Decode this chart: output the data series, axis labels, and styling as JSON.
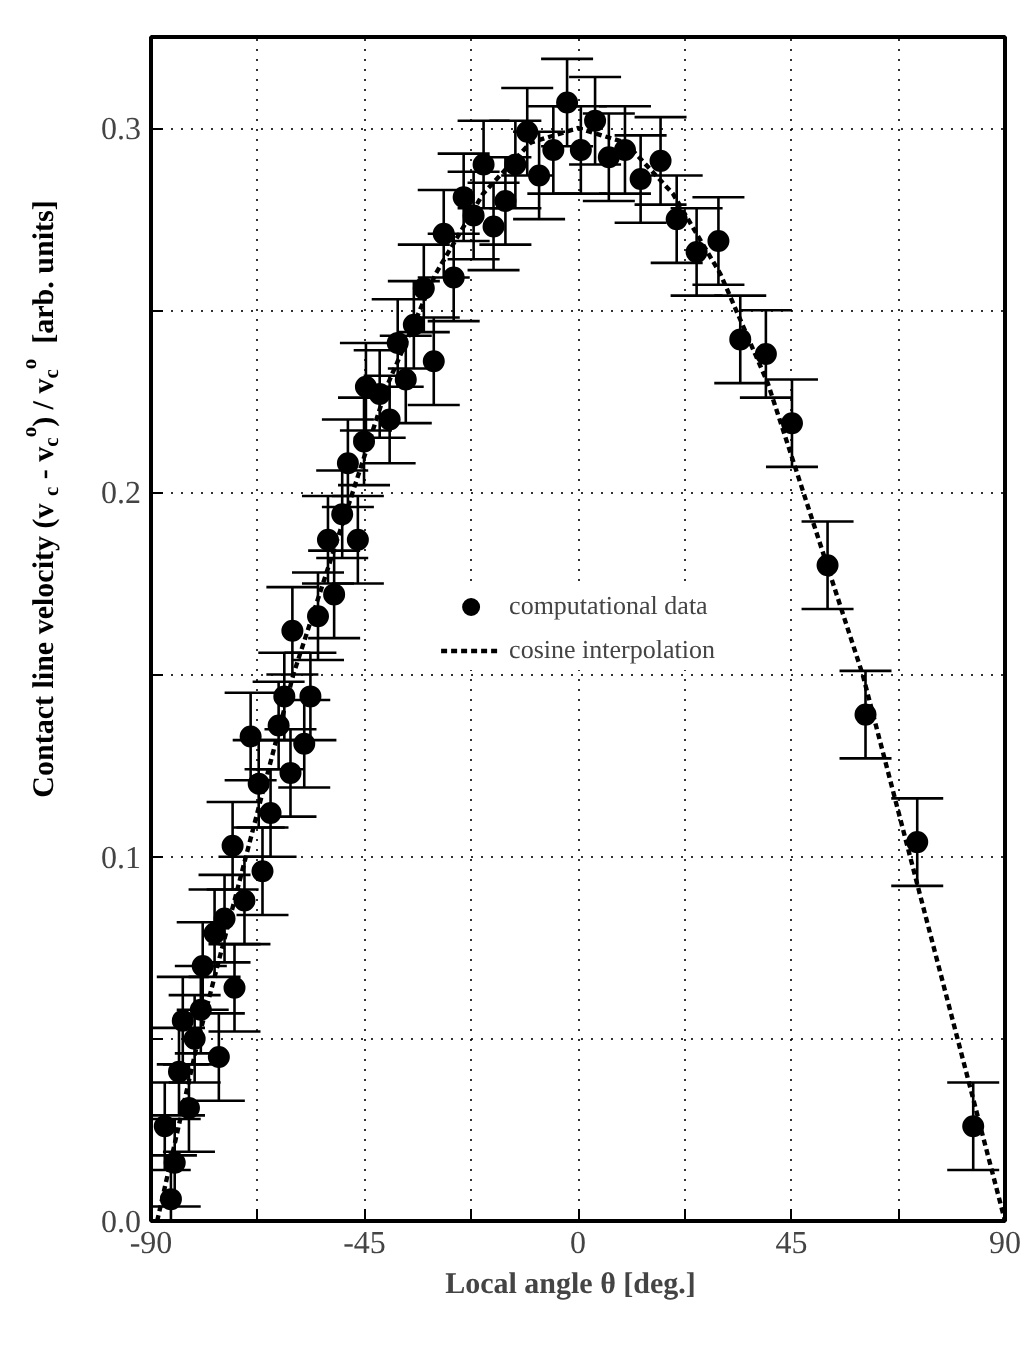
{
  "chart_data": {
    "type": "scatter",
    "xlabel": "Local angle  θ  [deg.]",
    "ylabel": "Contact line velocity  (v$_{c}$ - v$_{c}$$^{o}$) / v$_{c}$$^{o}$  [arb. units]",
    "xlim": [
      -90,
      90
    ],
    "ylim": [
      0,
      0.325
    ],
    "xticks": [
      -90,
      {
        "value": -67.5,
        "label": null
      },
      -45,
      {
        "value": -22.5,
        "label": null
      },
      0,
      {
        "value": 22.5,
        "label": null
      },
      45,
      {
        "value": 67.5,
        "label": null
      },
      90
    ],
    "yticks": [
      {
        "value": 0,
        "label": "0.0"
      },
      {
        "value": 0.05,
        "label": null
      },
      0.1,
      {
        "value": 0.15,
        "label": null
      },
      0.2,
      {
        "value": 0.25,
        "label": null
      },
      0.3
    ],
    "grid": true,
    "legend": "center",
    "series": [
      {
        "name": "computational data",
        "type": "scatter",
        "color": "#000000",
        "marker": "circle",
        "x": [
          -85.8,
          -85.0,
          -87.1,
          -82.0,
          -75.7,
          -84.1,
          -80.8,
          -83.3,
          -79.5,
          -72.4,
          -79.1,
          -76.6,
          -74.5,
          -70.3,
          -66.5,
          -72.8,
          -64.8,
          -60.6,
          -67.3,
          -57.7,
          -69.0,
          -63.1,
          -56.4,
          -61.9,
          -60.2,
          -54.8,
          -51.4,
          -46.4,
          -52.7,
          -49.7,
          -48.5,
          -45.1,
          -39.7,
          -41.8,
          -44.7,
          -36.3,
          -38.0,
          -30.4,
          -34.6,
          -32.5,
          -26.2,
          -28.3,
          -24.1,
          -22.0,
          -17.8,
          -15.3,
          -19.9,
          -13.2,
          -10.7,
          -8.2,
          -5.2,
          -2.3,
          0.6,
          3.6,
          6.5,
          9.9,
          13.2,
          17.4,
          20.8,
          25.0,
          29.6,
          34.2,
          39.6,
          45.1,
          52.6,
          60.6,
          71.5,
          83.3
        ],
        "values": [
          0.006,
          0.016,
          0.026,
          0.031,
          0.045,
          0.041,
          0.05,
          0.055,
          0.058,
          0.064,
          0.07,
          0.079,
          0.083,
          0.088,
          0.096,
          0.103,
          0.112,
          0.123,
          0.12,
          0.131,
          0.133,
          0.136,
          0.144,
          0.144,
          0.162,
          0.166,
          0.172,
          0.187,
          0.187,
          0.194,
          0.208,
          0.214,
          0.22,
          0.227,
          0.229,
          0.231,
          0.241,
          0.236,
          0.246,
          0.256,
          0.259,
          0.271,
          0.281,
          0.276,
          0.273,
          0.28,
          0.29,
          0.29,
          0.299,
          0.287,
          0.294,
          0.307,
          0.294,
          0.302,
          0.292,
          0.294,
          0.286,
          0.291,
          0.275,
          0.266,
          0.269,
          0.242,
          0.238,
          0.219,
          0.18,
          0.139,
          0.104,
          0.026
        ],
        "errors": [
          0.012,
          0.012,
          0.012,
          0.012,
          0.012,
          0.012,
          0.012,
          0.012,
          0.012,
          0.012,
          0.012,
          0.012,
          0.012,
          0.012,
          0.012,
          0.012,
          0.012,
          0.012,
          0.012,
          0.012,
          0.012,
          0.012,
          0.012,
          0.012,
          0.012,
          0.012,
          0.012,
          0.012,
          0.012,
          0.012,
          0.012,
          0.012,
          0.012,
          0.012,
          0.012,
          0.012,
          0.012,
          0.012,
          0.012,
          0.012,
          0.012,
          0.012,
          0.012,
          0.012,
          0.012,
          0.012,
          0.012,
          0.012,
          0.012,
          0.012,
          0.012,
          0.012,
          0.012,
          0.012,
          0.012,
          0.012,
          0.012,
          0.012,
          0.012,
          0.012,
          0.012,
          0.012,
          0.012,
          0.012,
          0.012,
          0.012,
          0.012,
          0.012
        ]
      },
      {
        "name": "cosine interpolation",
        "type": "line",
        "color": "#000000",
        "marker": "none",
        "line_style": "dashed",
        "x": [
          -88.7,
          -80,
          -70,
          -60,
          -50,
          -40,
          -30,
          -20,
          -10,
          0,
          10,
          20,
          30,
          40,
          50,
          60,
          70,
          80,
          90
        ],
        "values": [
          0.0,
          0.05,
          0.1,
          0.15,
          0.19,
          0.23,
          0.26,
          0.282,
          0.296,
          0.3,
          0.296,
          0.282,
          0.26,
          0.23,
          0.19,
          0.15,
          0.1,
          0.05,
          0.0
        ]
      }
    ]
  }
}
